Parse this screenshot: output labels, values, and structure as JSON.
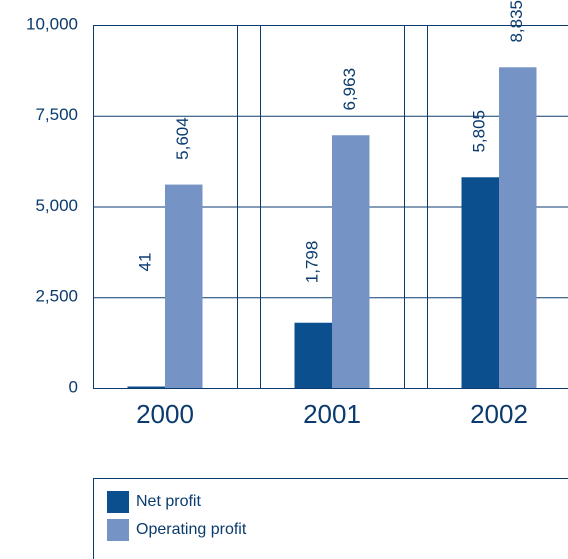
{
  "chart_data": {
    "type": "bar",
    "categories": [
      "2000",
      "2001",
      "2002"
    ],
    "series": [
      {
        "name": "Net profit",
        "color": "#0b4f8e",
        "values": [
          41,
          1798,
          5805
        ],
        "value_labels": [
          "41",
          "1,798",
          "5,805"
        ]
      },
      {
        "name": "Operating profit",
        "color": "#7594c5",
        "values": [
          5604,
          6963,
          8835
        ],
        "value_labels": [
          "5,604",
          "6,963",
          "8,835"
        ]
      }
    ],
    "ylim": [
      0,
      10000
    ],
    "yticks": [
      {
        "value": 0,
        "label": "0"
      },
      {
        "value": 2500,
        "label": "2,500"
      },
      {
        "value": 5000,
        "label": "5,000"
      },
      {
        "value": 7500,
        "label": "7,500"
      },
      {
        "value": 10000,
        "label": "10,000"
      }
    ],
    "grid": true
  }
}
